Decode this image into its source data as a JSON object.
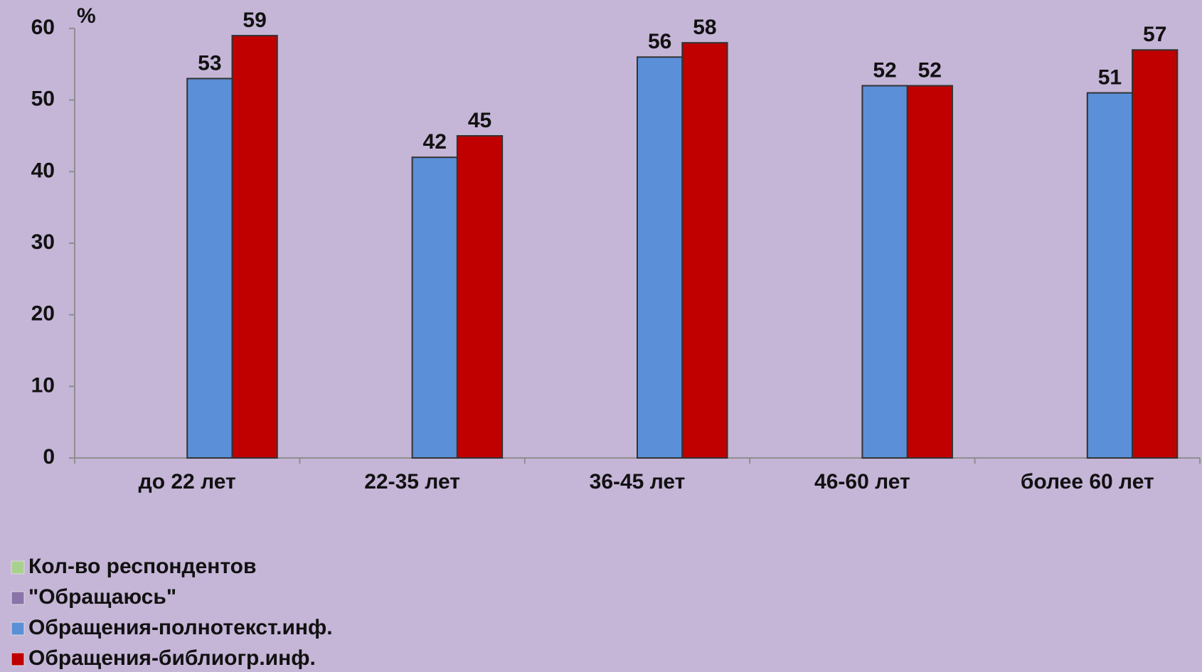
{
  "chart_data": {
    "type": "bar",
    "y_label": "%",
    "categories": [
      "до 22 лет",
      "22-35 лет",
      "36-45 лет",
      "46-60 лет",
      "более 60 лет"
    ],
    "series": [
      {
        "name": "Кол-во респондентов",
        "color": "#a9d18e",
        "values": [
          null,
          null,
          null,
          null,
          null
        ]
      },
      {
        "name": "\"Обращаюсь\"",
        "color": "#8b74a9",
        "values": [
          null,
          null,
          null,
          null,
          null
        ]
      },
      {
        "name": "Обращения-полнотекст.инф.",
        "color": "#5b90d8",
        "values": [
          53,
          42,
          56,
          52,
          51
        ]
      },
      {
        "name": "Обращения-библиогр.инф.",
        "color": "#c00000",
        "values": [
          59,
          45,
          58,
          52,
          57
        ]
      }
    ],
    "ylim": [
      0,
      60
    ],
    "yticks": [
      0,
      10,
      20,
      30,
      40,
      50,
      60
    ],
    "legend": "bottom-left"
  }
}
